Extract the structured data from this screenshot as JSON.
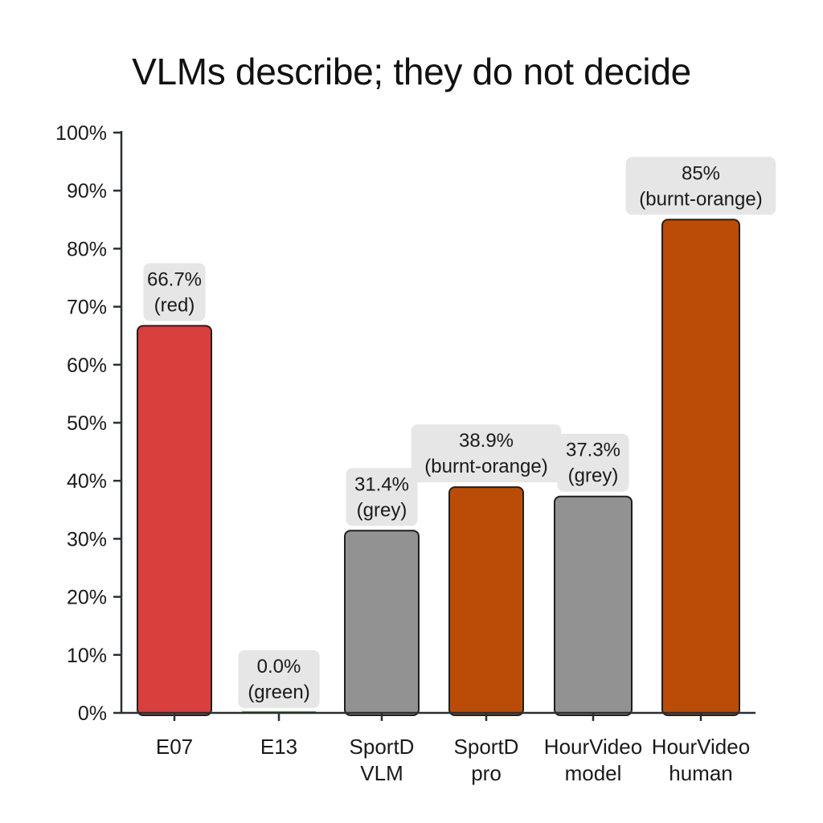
{
  "chart_data": {
    "type": "bar",
    "title": "VLMs describe; they do not decide",
    "xlabel": "",
    "ylabel": "",
    "ylim": [
      0,
      100
    ],
    "y_ticks": [
      "0%",
      "10%",
      "20%",
      "30%",
      "40%",
      "50%",
      "60%",
      "70%",
      "80%",
      "90%",
      "100%"
    ],
    "grid": false,
    "categories": [
      [
        "E07"
      ],
      [
        "E13"
      ],
      [
        "SportD",
        "VLM"
      ],
      [
        "SportD",
        "pro"
      ],
      [
        "HourVideo",
        "model"
      ],
      [
        "HourVideo",
        "human"
      ]
    ],
    "values": [
      66.7,
      0.0,
      31.4,
      38.9,
      37.3,
      85
    ],
    "colors": [
      "#d93f3c",
      "#4a9a45",
      "#929292",
      "#bb4c08",
      "#929292",
      "#bb4c08"
    ],
    "data_labels": [
      [
        "66.7%",
        "(red)"
      ],
      [
        "0.0%",
        "(green)"
      ],
      [
        "31.4%",
        "(grey)"
      ],
      [
        "38.9%",
        "(burnt-orange)"
      ],
      [
        "37.3%",
        "(grey)"
      ],
      [
        "85%",
        "(burnt-orange)"
      ]
    ]
  }
}
